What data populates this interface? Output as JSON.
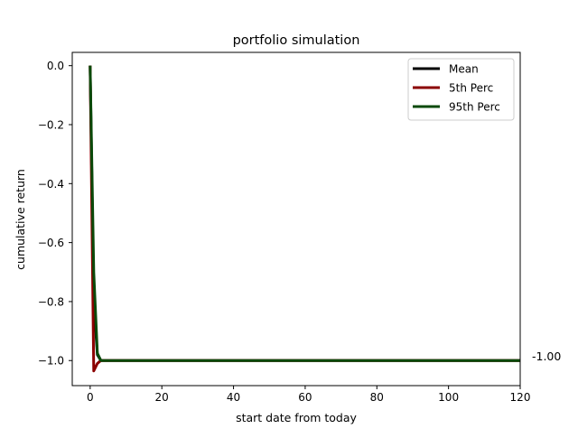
{
  "chart_data": {
    "type": "line",
    "title": "portfolio simulation",
    "xlabel": "start date from today",
    "ylabel": "cumulative return",
    "xlim": [
      -5,
      120
    ],
    "ylim": [
      -1.085,
      0.045
    ],
    "xticks": [
      0,
      20,
      40,
      60,
      80,
      100,
      120
    ],
    "yticks": [
      0.0,
      -0.2,
      -0.4,
      -0.6,
      -0.8,
      -1.0
    ],
    "xtick_labels": [
      "0",
      "20",
      "40",
      "60",
      "80",
      "100",
      "120"
    ],
    "ytick_labels": [
      "0.0",
      "−0.2",
      "−0.4",
      "−0.6",
      "−0.8",
      "−1.0"
    ],
    "grid": false,
    "legend_position": "top-right",
    "end_annotation": "-1.00",
    "series": [
      {
        "name": "Mean",
        "color": "#000000",
        "x": [
          0,
          1,
          2,
          3,
          120
        ],
        "y": [
          0.0,
          -0.8,
          -0.98,
          -1.0,
          -1.0
        ]
      },
      {
        "name": "5th Perc",
        "color": "#8b0000",
        "x": [
          0,
          1,
          2,
          3,
          120
        ],
        "y": [
          0.0,
          -1.035,
          -1.01,
          -1.0,
          -1.0
        ]
      },
      {
        "name": "95th Perc",
        "color": "#0a4a0a",
        "x": [
          0,
          1,
          2,
          3,
          120
        ],
        "y": [
          0.0,
          -0.7,
          -0.975,
          -1.0,
          -1.0
        ]
      }
    ]
  }
}
